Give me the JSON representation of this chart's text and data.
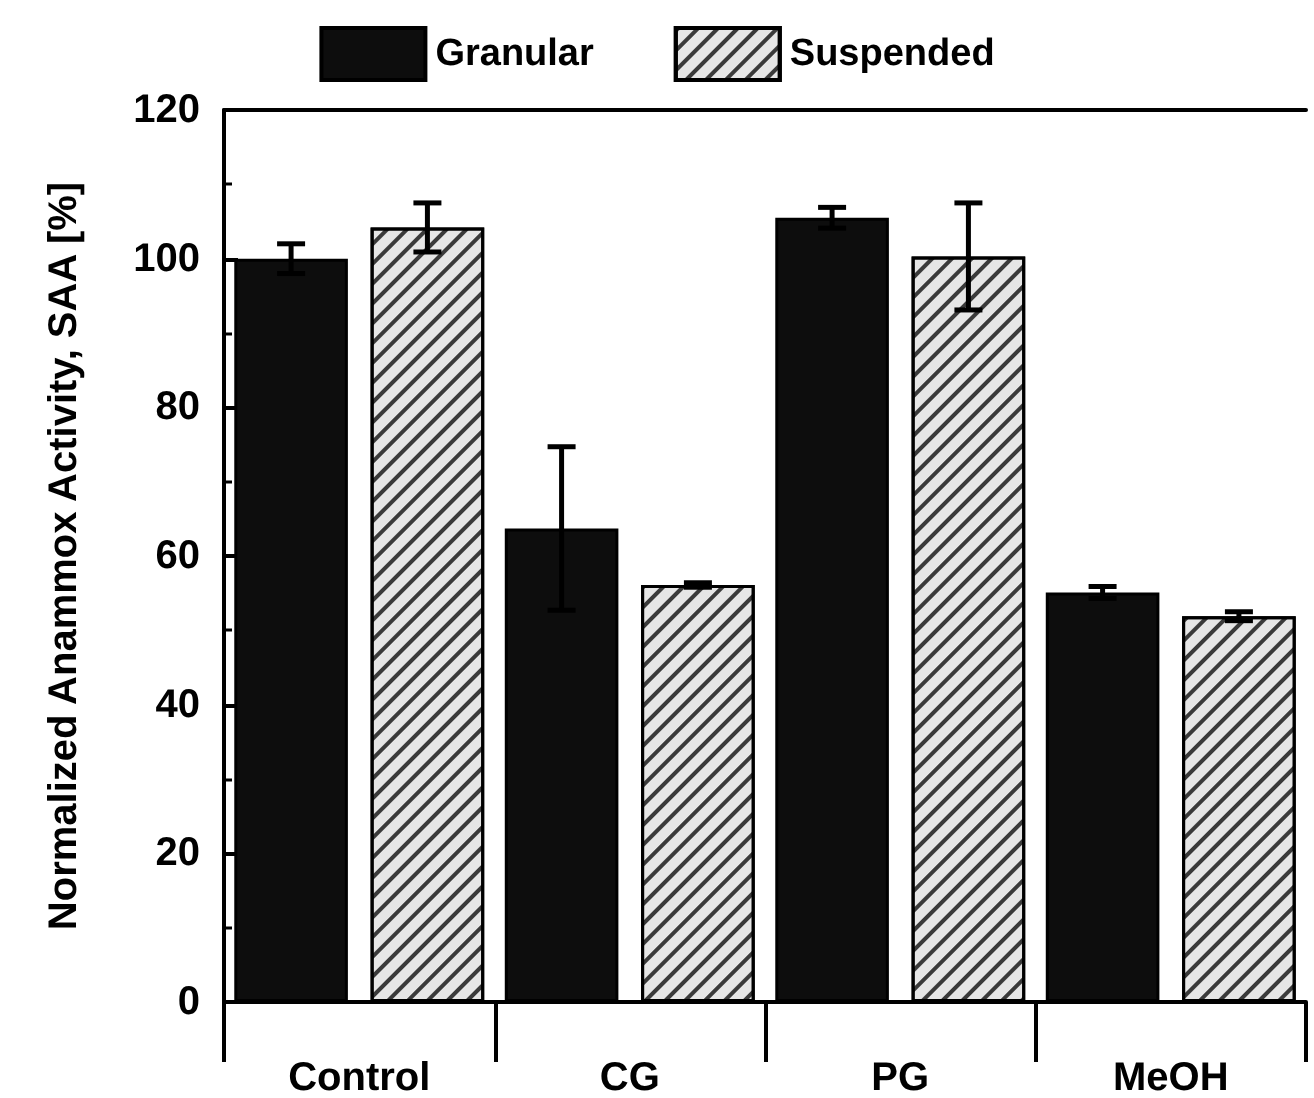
{
  "chart_data": {
    "type": "bar",
    "ylabel": "Normalized Anammox Activity, SAA [%]",
    "categories": [
      "Control",
      "CG",
      "PG",
      "MeOH"
    ],
    "series": [
      {
        "name": "Granular",
        "color": "#0d0d0d",
        "values": [
          100,
          63.7,
          105.5,
          55.1
        ],
        "errors": [
          2,
          11,
          1.4,
          0.8
        ]
      },
      {
        "name": "Suspended",
        "color": "#e6e6e6",
        "values": [
          104.2,
          56.1,
          100.3,
          51.9
        ],
        "errors": [
          3.3,
          0.3,
          7.2,
          0.6
        ]
      }
    ],
    "ylim": [
      0,
      120
    ],
    "yticks": [
      0,
      20,
      40,
      60,
      80,
      100,
      120
    ],
    "grid": false,
    "legend": "top"
  }
}
